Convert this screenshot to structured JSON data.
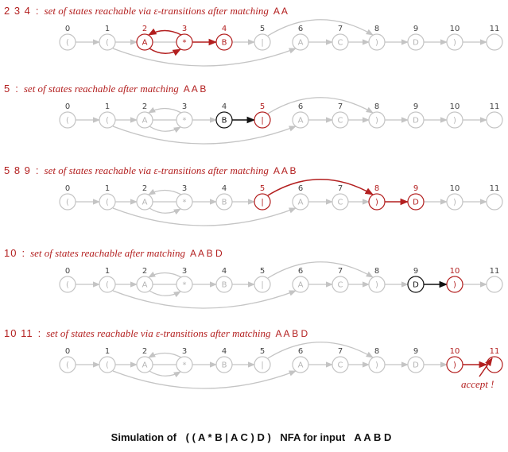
{
  "nfa": {
    "state_indices": [
      "0",
      "1",
      "2",
      "3",
      "4",
      "5",
      "6",
      "7",
      "8",
      "9",
      "10",
      "11"
    ],
    "state_glyphs": [
      "(",
      "(",
      "A",
      "*",
      "B",
      "|",
      "A",
      "C",
      ")",
      "D",
      ")",
      ""
    ]
  },
  "panels": [
    {
      "states_label": "2 3 4",
      "caption": "set of states reachable via ε-transitions after matching",
      "input": "A A",
      "reached": [
        2,
        3,
        4
      ],
      "match_state": null,
      "highlight_edges": [
        "2-3",
        "3-2",
        "3-4"
      ]
    },
    {
      "states_label": "5",
      "caption": "set of states reachable after matching",
      "input": "A A B",
      "reached": [
        5
      ],
      "match_state": 4,
      "highlight_edges": []
    },
    {
      "states_label": "5 8 9",
      "caption": "set of states reachable via ε-transitions after matching",
      "input": "A A B",
      "reached": [
        5,
        8,
        9
      ],
      "match_state": null,
      "highlight_edges": [
        "5-8",
        "8-9"
      ]
    },
    {
      "states_label": "10",
      "caption": "set of states reachable after matching",
      "input": "A A B D",
      "reached": [
        10
      ],
      "match_state": 9,
      "highlight_edges": []
    },
    {
      "states_label": "10 11",
      "caption": "set of states reachable via ε-transitions after matching",
      "input": "A A B D",
      "reached": [
        10,
        11
      ],
      "match_state": null,
      "highlight_edges": [
        "10-11"
      ]
    }
  ],
  "accept_label": "accept !",
  "title": {
    "prefix": "Simulation of",
    "regex": "( ( A * B | A C ) D )",
    "mid": "NFA  for input",
    "input": "A A B D"
  },
  "colors": {
    "highlight": "#b31f1f",
    "match": "#111111",
    "inactive": "#c4c4c4"
  }
}
